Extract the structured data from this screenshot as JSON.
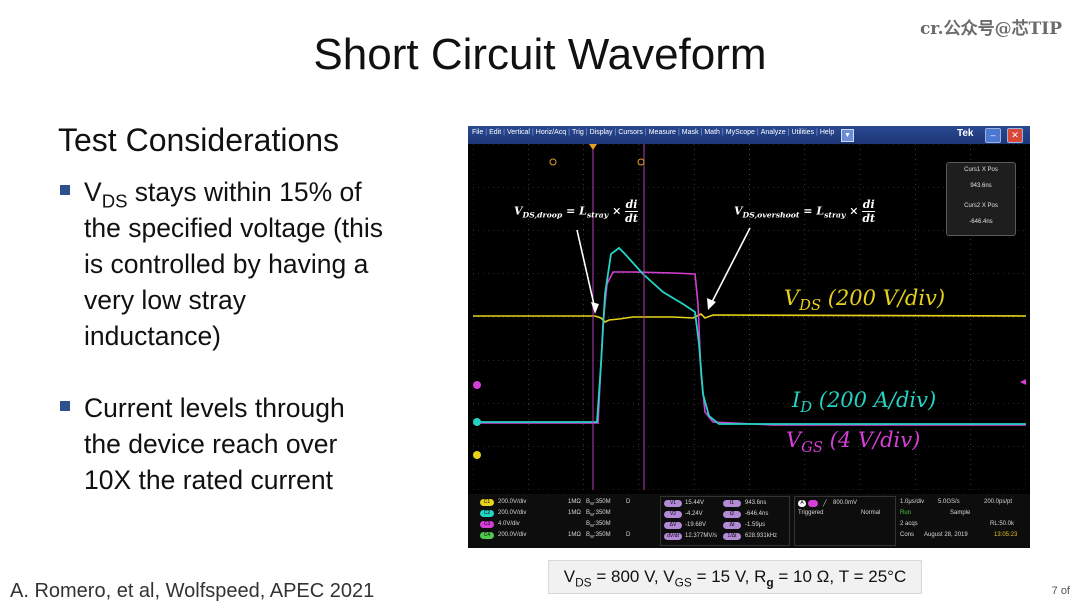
{
  "watermark": "cr.公众号@芯TIP",
  "title": "Short Circuit Waveform",
  "subtitle": "Test Considerations",
  "bullets": [
    {
      "l1a": "V",
      "l1sub": "DS",
      "l1b": " stays within 15% of",
      "l2": "the specified voltage (this",
      "l3": "is controlled by having a",
      "l4": "very low stray",
      "l5": "inductance)"
    },
    {
      "l1": "Current levels through",
      "l2": "the device reach over",
      "l3": "10X the rated current"
    }
  ],
  "footer": "A. Romero, et al, Wolfspeed, APEC 2021",
  "page_number": "7 of",
  "conditions": {
    "vds": "V",
    "vds_sub": "DS",
    "vds_val": " = 800 V, V",
    "vgs_sub": "GS",
    "vgs_val": " = 15 V, R",
    "rg_sub": "g",
    "rest": " = 10 Ω, T = 25°C"
  },
  "scope": {
    "menu": [
      "File",
      "Edit",
      "Vertical",
      "Horiz/Acq",
      "Trig",
      "Display",
      "Cursors",
      "Measure",
      "Mask",
      "Math",
      "MyScope",
      "Analyze",
      "Utilities",
      "Help"
    ],
    "brand": "Tek",
    "cursor_box": {
      "c1_label": "Curs1 X Pos",
      "c1_val": "943.6ns",
      "c2_label": "Curs2 X Pos",
      "c2_val": "-646.4ns"
    },
    "eq_droop": {
      "lhs": "V",
      "lhs_sub": "DS,droop",
      "mid": " = L",
      "mid_sub": "stray",
      "x": " × ",
      "num": "di",
      "den": "dt"
    },
    "eq_overshoot": {
      "lhs": "V",
      "lhs_sub": "DS,overshoot",
      "mid": " = L",
      "mid_sub": "stray",
      "x": " × ",
      "num": "di",
      "den": "dt"
    },
    "labels": {
      "vds": {
        "a": "V",
        "sub": "DS",
        "b": " (200 V/div)",
        "color": "#e8d21a"
      },
      "id": {
        "a": "I",
        "sub": "D",
        "b": " (200 A/div)",
        "color": "#23d3c3"
      },
      "vgs": {
        "a": "V",
        "sub": "GS",
        "b": " (4 V/div)",
        "color": "#d63fd6"
      }
    },
    "colors": {
      "ch1": "#e8d21a",
      "ch2": "#23d3c3",
      "ch3": "#d63fd6",
      "ch4": "#4ec94e"
    },
    "readout": {
      "channels": [
        {
          "id": "C1",
          "scale": "200.0V/div",
          "imp": "1MΩ",
          "bw": "B",
          "bw_sub": "W",
          "bw_val": ":350M",
          "extra": "D"
        },
        {
          "id": "C2",
          "scale": "200.0V/div",
          "imp": "1MΩ",
          "bw": "B",
          "bw_sub": "W",
          "bw_val": ":350M",
          "extra": ""
        },
        {
          "id": "C3",
          "scale": "4.0V/div",
          "imp": "",
          "bw": "B",
          "bw_sub": "W",
          "bw_val": ":350M",
          "extra": ""
        },
        {
          "id": "C4",
          "scale": "200.0V/div",
          "imp": "1MΩ",
          "bw": "B",
          "bw_sub": "W",
          "bw_val": ":350M",
          "extra": "D"
        }
      ],
      "meas": [
        {
          "tag": "V1",
          "val": "15.44V",
          "tag2": "t1",
          "val2": "943.6ns"
        },
        {
          "tag": "V2",
          "val": "-4.24V",
          "tag2": "t2",
          "val2": "-646.4ns"
        },
        {
          "tag": "ΔV",
          "val": "-19.68V",
          "tag2": "Δt",
          "val2": "-1.59μs"
        },
        {
          "tag": "dV/dt",
          "val": "12.377MV/s",
          "tag2": "1/Δt",
          "val2": "628.931kHz"
        }
      ],
      "trigger": {
        "ch": "A",
        "level": "800.0mV",
        "state": "Triggered",
        "mode": "Normal"
      },
      "acq": {
        "timebase": "1.0μs/div",
        "rate": "5.0GS/s",
        "res": "200.0ps/pt",
        "run": "Run",
        "sample": "Sample",
        "acqs": "2 acqs",
        "rl": "RL:50.0k",
        "cons": "Cons",
        "date": "August 28, 2019",
        "time": "13:05:23"
      }
    }
  }
}
